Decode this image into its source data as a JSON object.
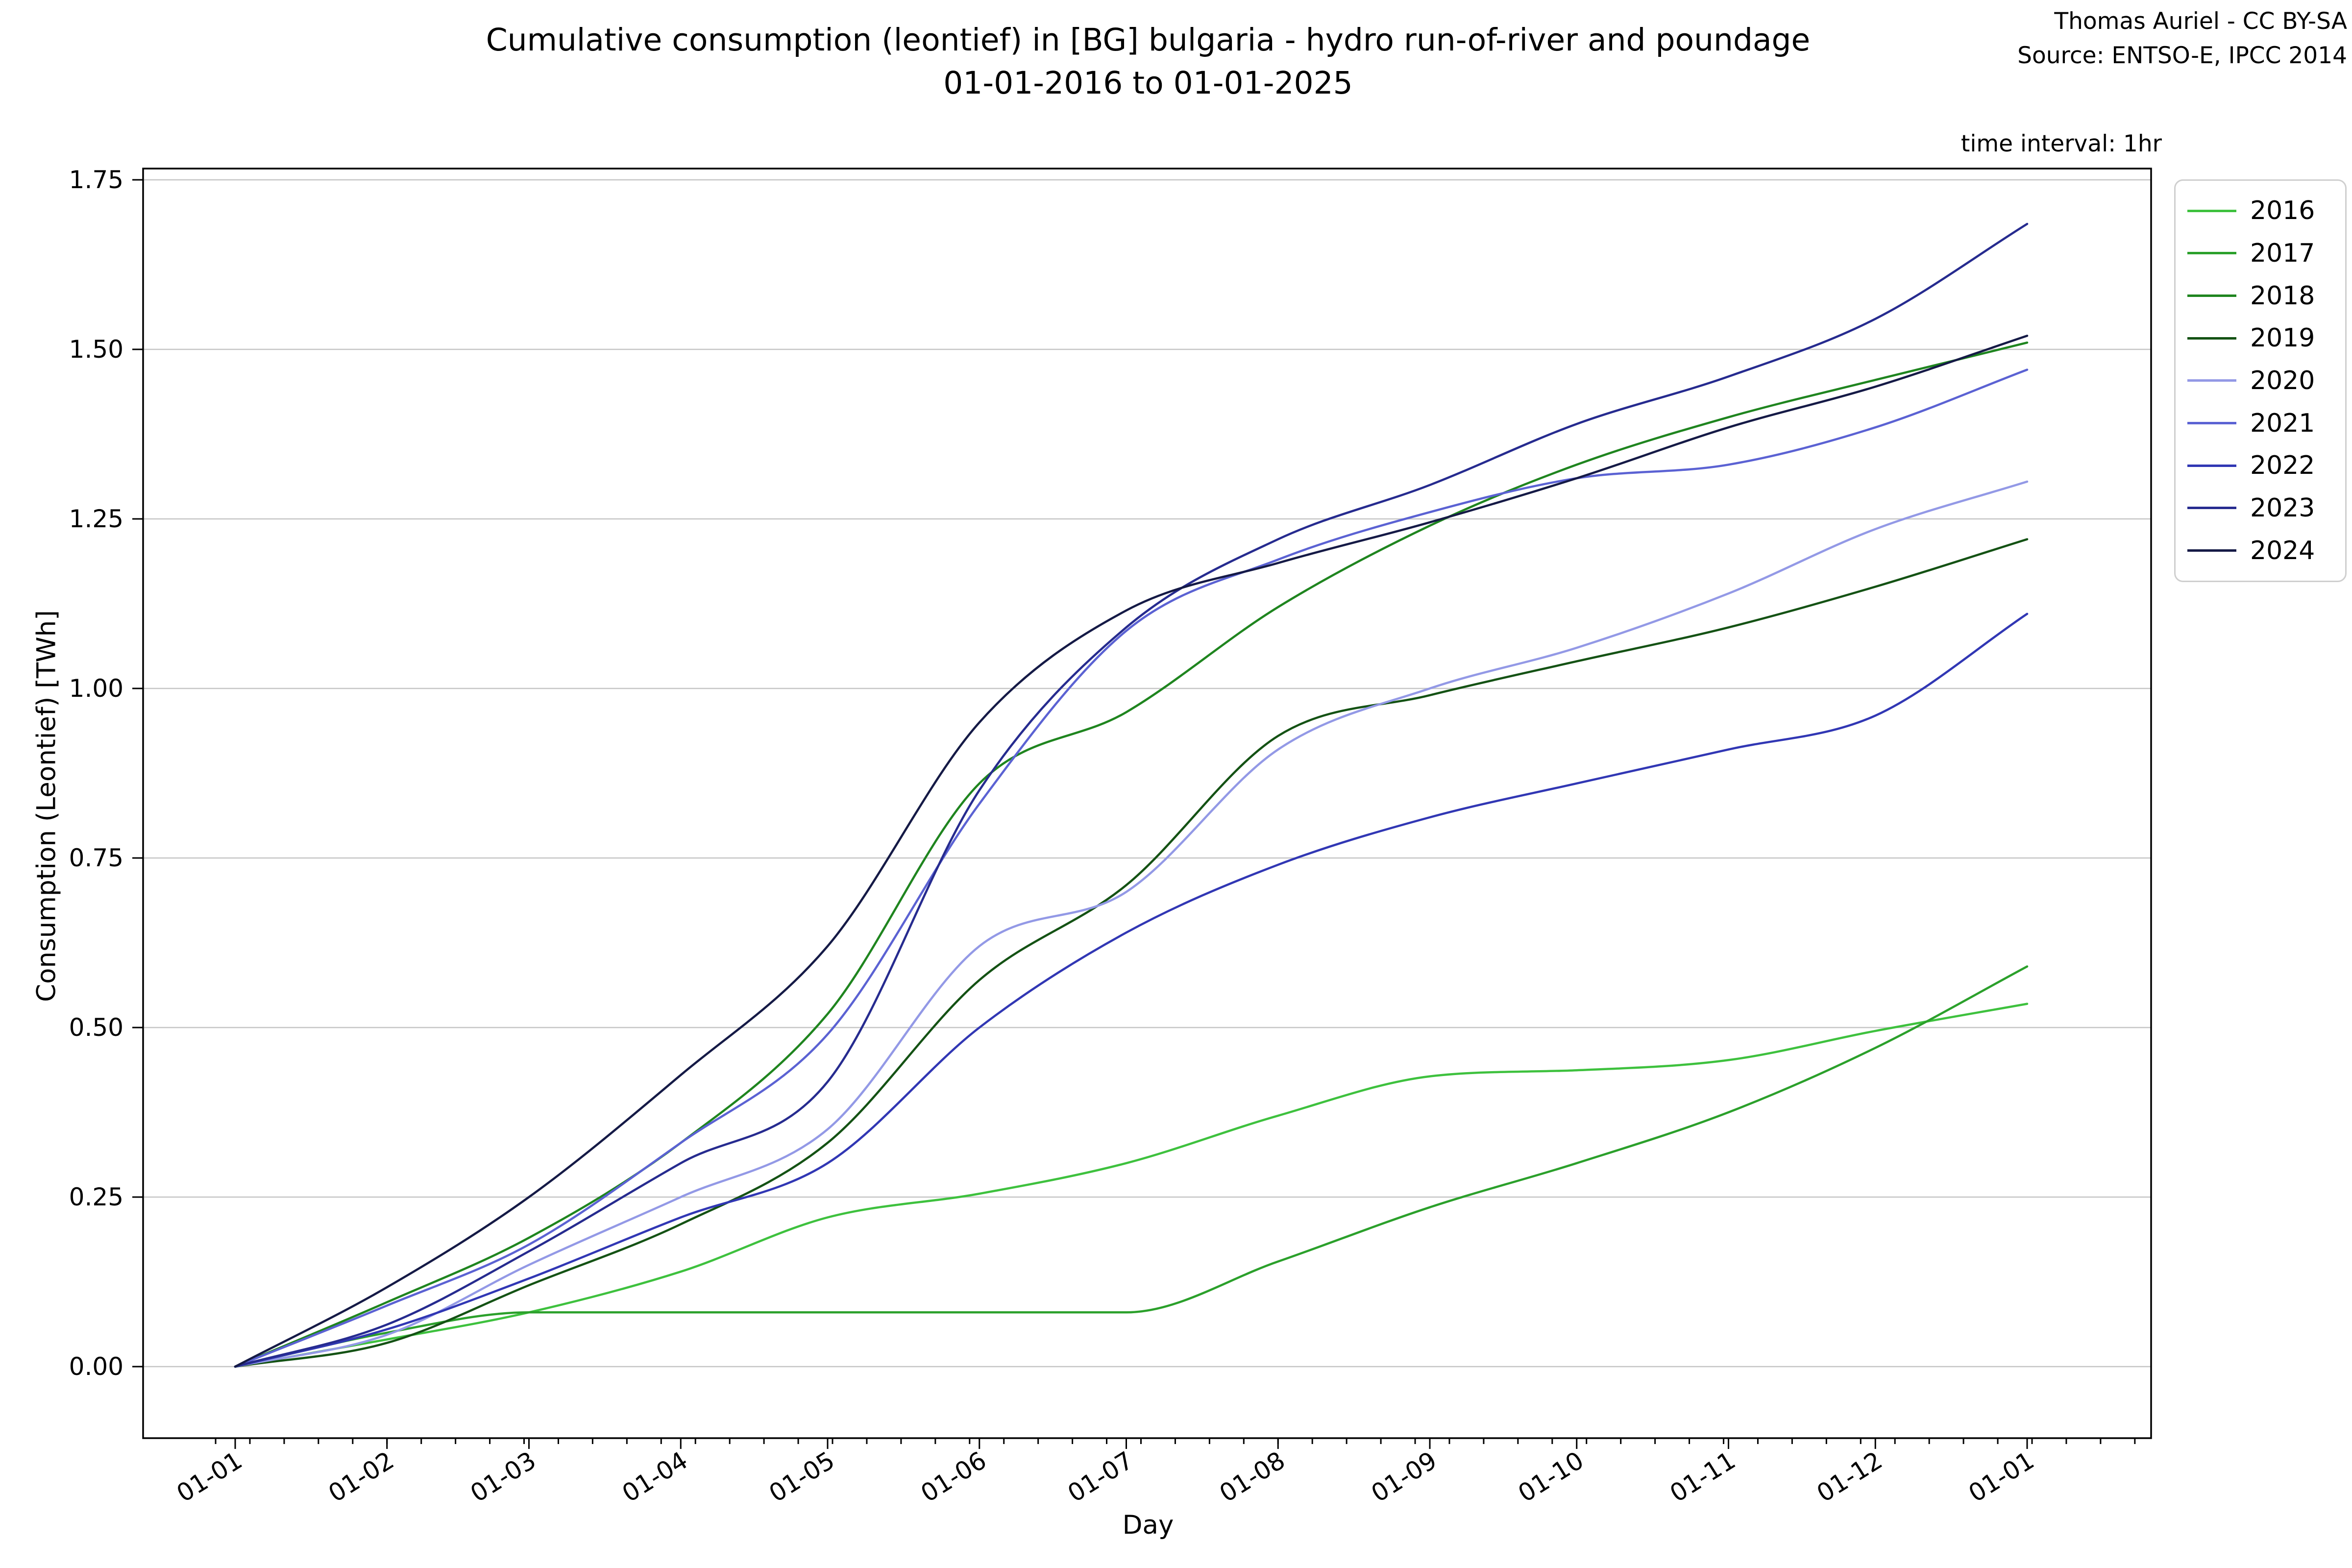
{
  "header": {
    "title_line1": "Cumulative consumption (leontief) in [BG] bulgaria - hydro run-of-river and poundage",
    "title_line2": "01-01-2016 to 01-01-2025",
    "credit": "Thomas Auriel - CC BY-SA",
    "source": "Source: ENTSO-E, IPCC 2014",
    "time_interval_note": "time interval: 1hr"
  },
  "chart_data": {
    "type": "line",
    "title": "Cumulative consumption (leontief) in [BG] bulgaria - hydro run-of-river and poundage 01-01-2016 to 01-01-2025",
    "xlabel": "Day",
    "ylabel": "Consumption (Leontief) [TWh]",
    "x_tick_labels": [
      "01-01",
      "01-02",
      "01-03",
      "01-04",
      "01-05",
      "01-06",
      "01-07",
      "01-08",
      "01-09",
      "01-10",
      "01-11",
      "01-12",
      "01-01"
    ],
    "x_tick_days": [
      0,
      31,
      60,
      91,
      121,
      152,
      182,
      213,
      244,
      274,
      305,
      335,
      366
    ],
    "x_minor_ticks": "weekly",
    "y_ticks": [
      0.0,
      0.25,
      0.5,
      0.75,
      1.0,
      1.25,
      1.5,
      1.75
    ],
    "ylim": [
      -0.105,
      1.765
    ],
    "xlim_days": [
      -18.5,
      391
    ],
    "grid": "horizontal",
    "legend_position": "outside upper right",
    "units": "TWh",
    "series": [
      {
        "name": "2016",
        "color": "#3ec13e",
        "values": [
          0,
          0.04,
          0.08,
          0.14,
          0.22,
          0.255,
          0.3,
          0.37,
          0.428,
          0.437,
          0.452,
          0.495,
          0.535
        ]
      },
      {
        "name": "2017",
        "color": "#2ba02b",
        "values": [
          0,
          0.05,
          0.08,
          0.08,
          0.08,
          0.08,
          0.08,
          0.155,
          0.235,
          0.3,
          0.375,
          0.47,
          0.59
        ]
      },
      {
        "name": "2018",
        "color": "#1f851f",
        "values": [
          0,
          0.095,
          0.19,
          0.33,
          0.52,
          0.86,
          0.965,
          1.12,
          1.24,
          1.33,
          1.4,
          1.455,
          1.51
        ]
      },
      {
        "name": "2019",
        "color": "#145214",
        "values": [
          0,
          0.035,
          0.12,
          0.21,
          0.33,
          0.57,
          0.71,
          0.93,
          0.99,
          1.04,
          1.09,
          1.15,
          1.22
        ]
      },
      {
        "name": "2020",
        "color": "#9399e6",
        "values": [
          0,
          0.047,
          0.15,
          0.25,
          0.35,
          0.62,
          0.7,
          0.91,
          1.0,
          1.06,
          1.14,
          1.235,
          1.305
        ]
      },
      {
        "name": "2021",
        "color": "#5b62d3",
        "values": [
          0,
          0.09,
          0.18,
          0.33,
          0.49,
          0.83,
          1.085,
          1.19,
          1.26,
          1.31,
          1.33,
          1.385,
          1.47
        ]
      },
      {
        "name": "2022",
        "color": "#3137b4",
        "values": [
          0,
          0.055,
          0.13,
          0.22,
          0.3,
          0.5,
          0.64,
          0.74,
          0.81,
          0.86,
          0.91,
          0.96,
          1.11
        ]
      },
      {
        "name": "2023",
        "color": "#262b8f",
        "values": [
          0,
          0.062,
          0.17,
          0.3,
          0.42,
          0.85,
          1.09,
          1.22,
          1.3,
          1.39,
          1.46,
          1.545,
          1.685
        ]
      },
      {
        "name": "2024",
        "color": "#151a46",
        "values": [
          0,
          0.117,
          0.25,
          0.43,
          0.62,
          0.95,
          1.115,
          1.185,
          1.245,
          1.31,
          1.385,
          1.445,
          1.52
        ]
      }
    ]
  }
}
